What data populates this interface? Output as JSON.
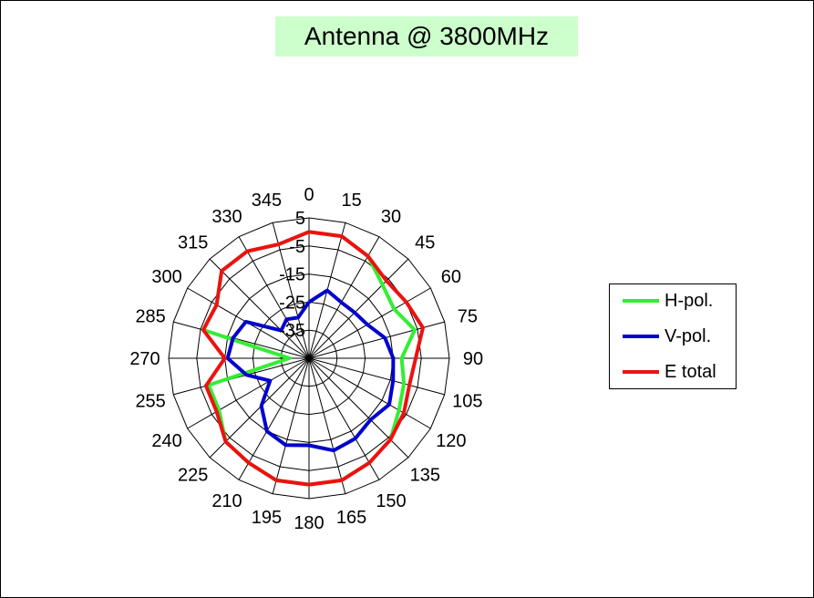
{
  "chart_data": {
    "type": "polar-line",
    "title": "Antenna @ 3800MHz",
    "angular_ticks": [
      "0",
      "15",
      "30",
      "45",
      "60",
      "75",
      "90",
      "105",
      "120",
      "135",
      "150",
      "165",
      "180",
      "195",
      "210",
      "225",
      "240",
      "255",
      "270",
      "285",
      "300",
      "315",
      "330",
      "345"
    ],
    "angles_deg": [
      0,
      15,
      30,
      45,
      60,
      75,
      90,
      105,
      120,
      135,
      150,
      165,
      180,
      195,
      210,
      225,
      240,
      255,
      270,
      285,
      300,
      315,
      330,
      345
    ],
    "radial_ticks": [
      "5",
      "-5",
      "-15",
      "-25",
      "-35"
    ],
    "radial_tick_values": [
      5,
      -5,
      -15,
      -25,
      -35
    ],
    "rlim": [
      -45,
      5
    ],
    "grid": true,
    "legend_position": "right",
    "series": [
      {
        "name": "H-pol.",
        "color": "#33ee33",
        "values": [
          0,
          0,
          -3,
          -8,
          -10,
          -6,
          -12,
          -10,
          -8,
          -4,
          -2,
          0,
          0,
          0,
          -2,
          -3,
          -8,
          -8,
          -38,
          -6,
          -7,
          -1,
          -1,
          -3
        ]
      },
      {
        "name": "V-pol.",
        "color": "#0000cc",
        "values": [
          -25,
          -20,
          -22,
          -22,
          -21,
          -17,
          -15,
          -14,
          -12,
          -14,
          -12,
          -11,
          -14,
          -13,
          -15,
          -21,
          -29,
          -22,
          -16,
          -17,
          -19,
          -31,
          -29,
          -30
        ]
      },
      {
        "name": "E total",
        "color": "#ee1111",
        "values": [
          0,
          0,
          -3,
          -6,
          -5,
          -3,
          -7,
          -8,
          -6,
          -4,
          -2,
          0,
          0,
          0,
          -2,
          -3,
          -7,
          -7,
          -15,
          -6,
          -7,
          -1,
          -1,
          -3
        ]
      }
    ]
  }
}
